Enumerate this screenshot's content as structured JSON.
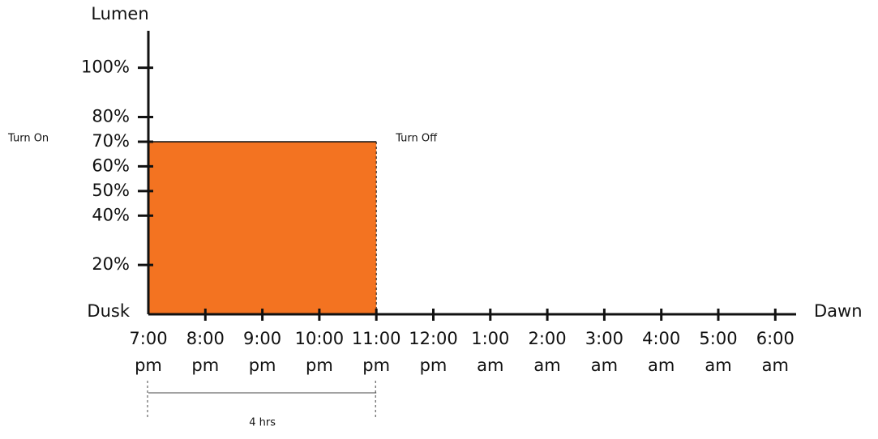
{
  "chart_data": {
    "type": "area",
    "y_label": "Lumen",
    "start_label": "Dusk",
    "end_label": "Dawn",
    "categories": [
      "7:00 pm",
      "8:00 pm",
      "9:00 pm",
      "10:00 pm",
      "11:00 pm",
      "12:00 pm",
      "1:00 am",
      "2:00 am",
      "3:00 am",
      "4:00 am",
      "5:00 am",
      "6:00 am"
    ],
    "values": [
      70,
      70,
      70,
      70,
      70,
      null,
      null,
      null,
      null,
      null,
      null,
      null
    ],
    "color": "#f37321",
    "ylim": [
      0,
      115
    ],
    "yticks": [
      {
        "value": 20,
        "label": "20%"
      },
      {
        "value": 40,
        "label": "40%"
      },
      {
        "value": 50,
        "label": "50%"
      },
      {
        "value": 60,
        "label": "60%"
      },
      {
        "value": 70,
        "label": "70%"
      },
      {
        "value": 80,
        "label": "80%"
      },
      {
        "value": 100,
        "label": "100%"
      }
    ],
    "annotations": {
      "turn_on": "Turn On",
      "turn_off": "Turn Off",
      "duration": "4 hrs"
    }
  }
}
